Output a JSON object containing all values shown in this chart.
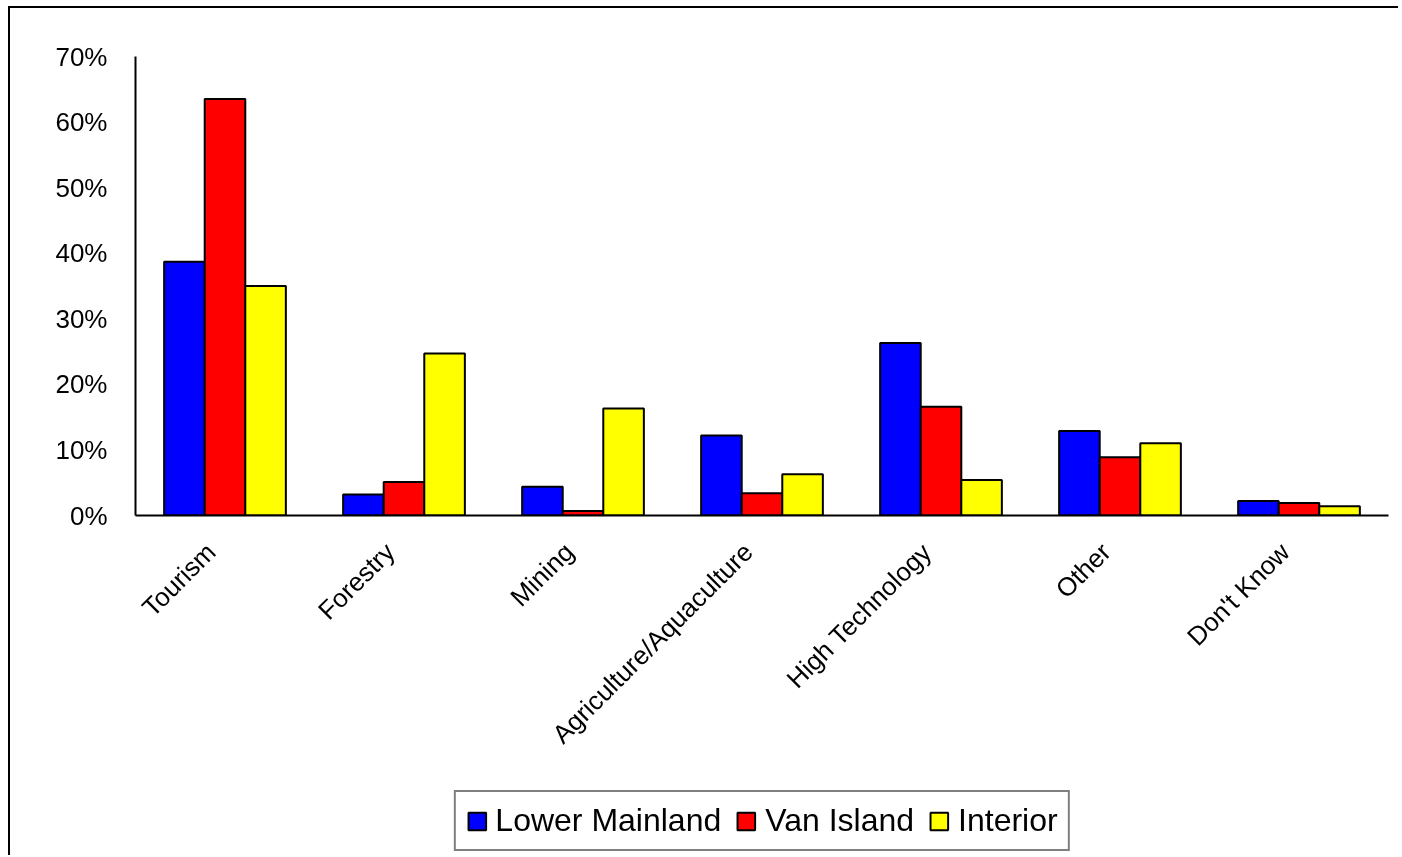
{
  "chart_data": {
    "type": "bar",
    "categories": [
      "Tourism",
      "Forestry",
      "Mining",
      "Agriculture/Aquaculture",
      "High Technology",
      "Other",
      "Don't Know"
    ],
    "series": [
      {
        "name": "Lower Mainland",
        "color": "#0000ff",
        "values": [
          38.7,
          3.2,
          4.4,
          12.2,
          26.3,
          12.9,
          2.2
        ]
      },
      {
        "name": "Van Island",
        "color": "#ff0000",
        "values": [
          63.5,
          5.1,
          0.7,
          3.4,
          16.6,
          8.9,
          1.9
        ]
      },
      {
        "name": "Interior",
        "color": "#ffff00",
        "values": [
          35.0,
          24.7,
          16.3,
          6.3,
          5.4,
          11.0,
          1.4
        ]
      }
    ],
    "ylim": [
      0,
      70
    ],
    "yticks": [
      {
        "value": 0,
        "label": "0%"
      },
      {
        "value": 10,
        "label": "10%"
      },
      {
        "value": 20,
        "label": "20%"
      },
      {
        "value": 30,
        "label": "30%"
      },
      {
        "value": 40,
        "label": "40%"
      },
      {
        "value": 50,
        "label": "50%"
      },
      {
        "value": 60,
        "label": "60%"
      },
      {
        "value": 70,
        "label": "70%"
      }
    ],
    "legend": "bottom"
  }
}
